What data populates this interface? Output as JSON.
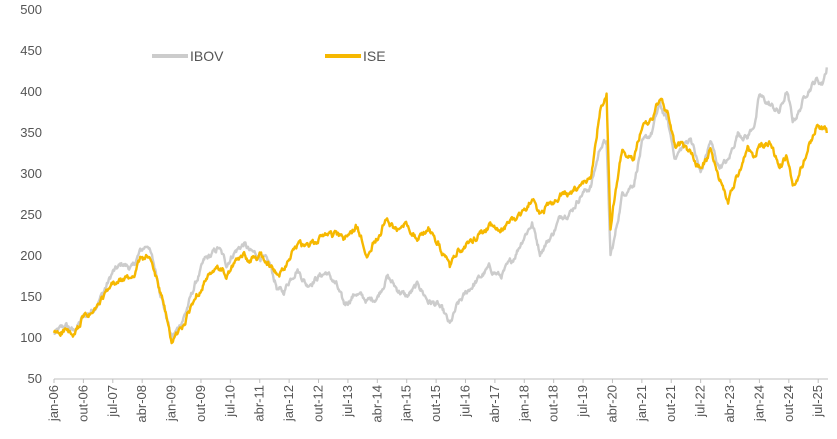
{
  "chart_data": {
    "type": "line",
    "title": "",
    "xlabel": "",
    "ylabel": "",
    "ylim": [
      50,
      500
    ],
    "yticks": [
      50,
      100,
      150,
      200,
      250,
      300,
      350,
      400,
      450,
      500
    ],
    "x_range": [
      2006.0,
      2025.75
    ],
    "grid": false,
    "legend": "top-left",
    "xtick_labels": [
      {
        "label": "jan-06",
        "t": 2006.0
      },
      {
        "label": "out-06",
        "t": 2006.75
      },
      {
        "label": "jul-07",
        "t": 2007.5
      },
      {
        "label": "abr-08",
        "t": 2008.25
      },
      {
        "label": "jan-09",
        "t": 2009.0
      },
      {
        "label": "out-09",
        "t": 2009.75
      },
      {
        "label": "jul-10",
        "t": 2010.5
      },
      {
        "label": "abr-11",
        "t": 2011.25
      },
      {
        "label": "jan-12",
        "t": 2012.0
      },
      {
        "label": "out-12",
        "t": 2012.75
      },
      {
        "label": "jul-13",
        "t": 2013.5
      },
      {
        "label": "abr-14",
        "t": 2014.25
      },
      {
        "label": "jan-15",
        "t": 2015.0
      },
      {
        "label": "out-15",
        "t": 2015.75
      },
      {
        "label": "jul-16",
        "t": 2016.5
      },
      {
        "label": "abr-17",
        "t": 2017.25
      },
      {
        "label": "jan-18",
        "t": 2018.0
      },
      {
        "label": "out-18",
        "t": 2018.75
      },
      {
        "label": "jul-19",
        "t": 2019.5
      },
      {
        "label": "abr-20",
        "t": 2020.25
      },
      {
        "label": "jan-21",
        "t": 2021.0
      },
      {
        "label": "out-21",
        "t": 2021.75
      },
      {
        "label": "jul-22",
        "t": 2022.5
      },
      {
        "label": "abr-23",
        "t": 2023.25
      },
      {
        "label": "jan-24",
        "t": 2024.0
      },
      {
        "label": "out-24",
        "t": 2024.75
      },
      {
        "label": "jul-25",
        "t": 2025.5
      }
    ],
    "series": [
      {
        "name": "IBOV",
        "color": "#cccccc",
        "points": [
          [
            2006.0,
            105
          ],
          [
            2006.3,
            115
          ],
          [
            2006.5,
            108
          ],
          [
            2006.75,
            125
          ],
          [
            2007.0,
            135
          ],
          [
            2007.25,
            155
          ],
          [
            2007.5,
            180
          ],
          [
            2007.75,
            190
          ],
          [
            2008.0,
            185
          ],
          [
            2008.2,
            205
          ],
          [
            2008.4,
            215
          ],
          [
            2008.6,
            180
          ],
          [
            2008.8,
            140
          ],
          [
            2009.0,
            100
          ],
          [
            2009.15,
            110
          ],
          [
            2009.35,
            130
          ],
          [
            2009.6,
            165
          ],
          [
            2009.85,
            195
          ],
          [
            2010.0,
            200
          ],
          [
            2010.2,
            210
          ],
          [
            2010.4,
            190
          ],
          [
            2010.6,
            205
          ],
          [
            2010.85,
            215
          ],
          [
            2011.0,
            205
          ],
          [
            2011.25,
            200
          ],
          [
            2011.5,
            190
          ],
          [
            2011.7,
            160
          ],
          [
            2011.85,
            155
          ],
          [
            2012.0,
            170
          ],
          [
            2012.2,
            185
          ],
          [
            2012.45,
            165
          ],
          [
            2012.75,
            175
          ],
          [
            2012.95,
            180
          ],
          [
            2013.2,
            165
          ],
          [
            2013.4,
            140
          ],
          [
            2013.7,
            155
          ],
          [
            2014.0,
            145
          ],
          [
            2014.25,
            150
          ],
          [
            2014.5,
            175
          ],
          [
            2014.75,
            160
          ],
          [
            2015.0,
            150
          ],
          [
            2015.3,
            165
          ],
          [
            2015.55,
            145
          ],
          [
            2015.8,
            140
          ],
          [
            2015.95,
            130
          ],
          [
            2016.1,
            115
          ],
          [
            2016.3,
            140
          ],
          [
            2016.6,
            160
          ],
          [
            2016.9,
            175
          ],
          [
            2017.1,
            185
          ],
          [
            2017.4,
            175
          ],
          [
            2017.7,
            195
          ],
          [
            2018.0,
            225
          ],
          [
            2018.2,
            240
          ],
          [
            2018.4,
            205
          ],
          [
            2018.7,
            225
          ],
          [
            2018.95,
            250
          ],
          [
            2019.2,
            255
          ],
          [
            2019.45,
            275
          ],
          [
            2019.7,
            285
          ],
          [
            2019.95,
            335
          ],
          [
            2020.1,
            340
          ],
          [
            2020.2,
            200
          ],
          [
            2020.3,
            220
          ],
          [
            2020.5,
            275
          ],
          [
            2020.8,
            290
          ],
          [
            2021.0,
            335
          ],
          [
            2021.25,
            350
          ],
          [
            2021.45,
            385
          ],
          [
            2021.65,
            365
          ],
          [
            2021.85,
            320
          ],
          [
            2022.0,
            330
          ],
          [
            2022.25,
            345
          ],
          [
            2022.5,
            300
          ],
          [
            2022.75,
            340
          ],
          [
            2022.95,
            310
          ],
          [
            2023.2,
            315
          ],
          [
            2023.45,
            350
          ],
          [
            2023.7,
            345
          ],
          [
            2023.9,
            365
          ],
          [
            2024.0,
            395
          ],
          [
            2024.25,
            385
          ],
          [
            2024.5,
            375
          ],
          [
            2024.7,
            400
          ],
          [
            2024.85,
            365
          ],
          [
            2025.0,
            375
          ],
          [
            2025.2,
            400
          ],
          [
            2025.45,
            415
          ],
          [
            2025.6,
            410
          ],
          [
            2025.72,
            430
          ]
        ]
      },
      {
        "name": "ISE",
        "color": "#f6b800",
        "points": [
          [
            2006.0,
            105
          ],
          [
            2006.3,
            110
          ],
          [
            2006.5,
            100
          ],
          [
            2006.75,
            125
          ],
          [
            2007.0,
            130
          ],
          [
            2007.25,
            148
          ],
          [
            2007.5,
            165
          ],
          [
            2007.75,
            170
          ],
          [
            2008.0,
            175
          ],
          [
            2008.2,
            195
          ],
          [
            2008.4,
            200
          ],
          [
            2008.6,
            175
          ],
          [
            2008.8,
            140
          ],
          [
            2009.0,
            95
          ],
          [
            2009.15,
            105
          ],
          [
            2009.35,
            120
          ],
          [
            2009.6,
            150
          ],
          [
            2009.85,
            170
          ],
          [
            2010.0,
            175
          ],
          [
            2010.2,
            185
          ],
          [
            2010.4,
            175
          ],
          [
            2010.6,
            190
          ],
          [
            2010.85,
            200
          ],
          [
            2011.0,
            195
          ],
          [
            2011.25,
            200
          ],
          [
            2011.5,
            190
          ],
          [
            2011.7,
            175
          ],
          [
            2011.85,
            185
          ],
          [
            2012.0,
            200
          ],
          [
            2012.2,
            215
          ],
          [
            2012.45,
            210
          ],
          [
            2012.75,
            220
          ],
          [
            2012.95,
            228
          ],
          [
            2013.2,
            225
          ],
          [
            2013.4,
            220
          ],
          [
            2013.7,
            235
          ],
          [
            2014.0,
            205
          ],
          [
            2014.25,
            225
          ],
          [
            2014.5,
            245
          ],
          [
            2014.75,
            230
          ],
          [
            2015.0,
            240
          ],
          [
            2015.3,
            220
          ],
          [
            2015.55,
            235
          ],
          [
            2015.8,
            215
          ],
          [
            2015.95,
            200
          ],
          [
            2016.1,
            185
          ],
          [
            2016.3,
            205
          ],
          [
            2016.6,
            215
          ],
          [
            2016.9,
            230
          ],
          [
            2017.1,
            235
          ],
          [
            2017.4,
            230
          ],
          [
            2017.7,
            245
          ],
          [
            2018.0,
            255
          ],
          [
            2018.2,
            270
          ],
          [
            2018.4,
            250
          ],
          [
            2018.7,
            265
          ],
          [
            2018.95,
            275
          ],
          [
            2019.2,
            275
          ],
          [
            2019.45,
            285
          ],
          [
            2019.7,
            295
          ],
          [
            2019.95,
            385
          ],
          [
            2020.1,
            400
          ],
          [
            2020.2,
            230
          ],
          [
            2020.3,
            270
          ],
          [
            2020.5,
            330
          ],
          [
            2020.8,
            320
          ],
          [
            2021.0,
            360
          ],
          [
            2021.25,
            365
          ],
          [
            2021.45,
            390
          ],
          [
            2021.65,
            375
          ],
          [
            2021.85,
            330
          ],
          [
            2022.0,
            335
          ],
          [
            2022.25,
            325
          ],
          [
            2022.5,
            305
          ],
          [
            2022.75,
            330
          ],
          [
            2022.95,
            300
          ],
          [
            2023.2,
            265
          ],
          [
            2023.45,
            300
          ],
          [
            2023.7,
            330
          ],
          [
            2023.9,
            320
          ],
          [
            2024.0,
            335
          ],
          [
            2024.25,
            340
          ],
          [
            2024.5,
            310
          ],
          [
            2024.7,
            320
          ],
          [
            2024.85,
            285
          ],
          [
            2025.0,
            295
          ],
          [
            2025.2,
            325
          ],
          [
            2025.45,
            360
          ],
          [
            2025.6,
            355
          ],
          [
            2025.72,
            350
          ]
        ]
      }
    ]
  }
}
